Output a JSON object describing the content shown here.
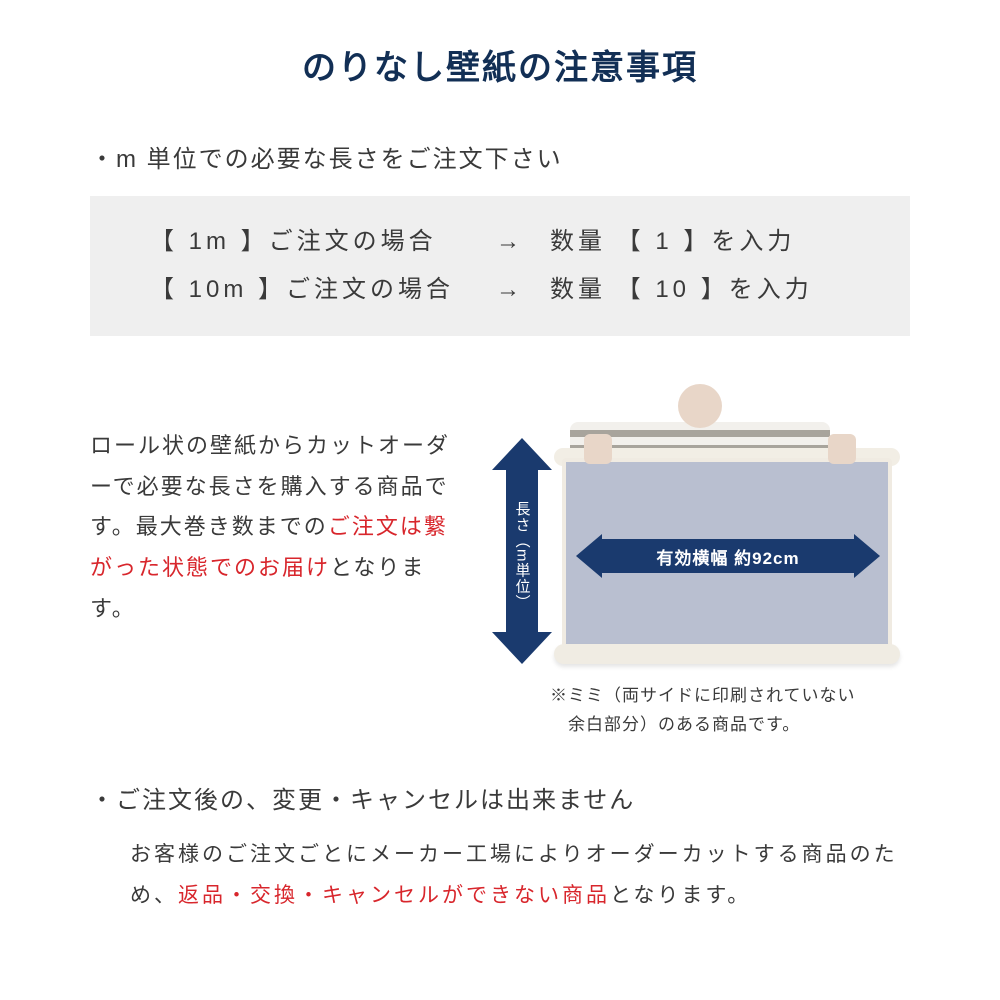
{
  "colors": {
    "title": "#122f55",
    "body_text": "#3a3a3a",
    "highlight": "#d8262c",
    "box_bg": "#efefef",
    "arrow_navy": "#1a3a6e",
    "panel_fill": "#b9bfd0",
    "panel_border": "#f0ebe2",
    "roll": "#f2eee5"
  },
  "title": "のりなし壁紙の注意事項",
  "bullet1": "・m 単位での必要な長さをご注文下さい",
  "order_box": {
    "rows": [
      {
        "left": "【 1m 】ご注文の場合",
        "arrow": "→",
        "right": "数量 【 1 】を入力"
      },
      {
        "left": "【 10m 】ご注文の場合",
        "arrow": "→",
        "right": "数量 【 10 】を入力"
      }
    ]
  },
  "desc": {
    "line1": "ロール状の壁紙からカットオーダーで必要な長さを購入する商品です。最大巻き数までの",
    "hl1": "ご注文は繋がった状態でのお届け",
    "line2": "となります。"
  },
  "diagram": {
    "vertical_label": "長さ（m単位）",
    "horizontal_label": "有効横幅 約92cm"
  },
  "mimi_note": {
    "l1": "※ミミ（両サイドに印刷されていない",
    "l2": "　余白部分）のある商品です。"
  },
  "bullet2": "・ご注文後の、変更・キャンセルは出来ません",
  "sec2": {
    "pre": "お客様のご注文ごとにメーカー工場によりオーダーカットする商品のため、",
    "hl": "返品・交換・キャンセルができない商品",
    "post": "となります。"
  }
}
